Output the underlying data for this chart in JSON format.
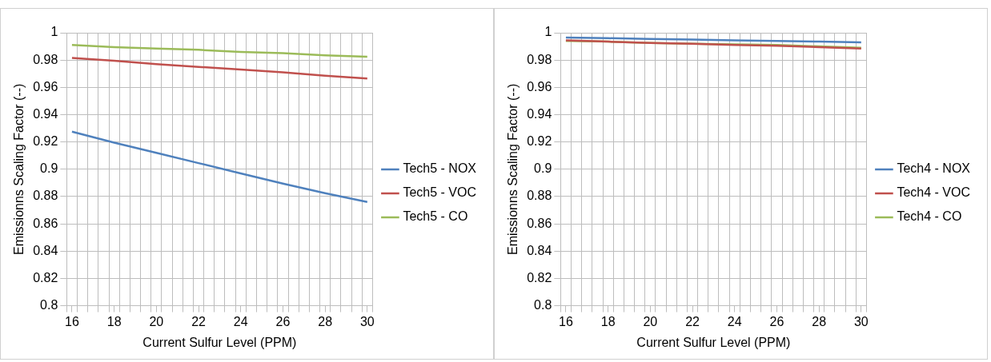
{
  "chart_data": [
    {
      "type": "line",
      "xlabel": "Current Sulfur Level (PPM)",
      "ylabel": "Emissionns Scaling Factor (--)",
      "x": [
        16,
        18,
        20,
        22,
        24,
        26,
        28,
        30
      ],
      "series": [
        {
          "name": "Tech5 - NOX",
          "color": "#4f81bd",
          "values": [
            0.9275,
            0.9195,
            0.912,
            0.9045,
            0.897,
            0.8895,
            0.8825,
            0.876
          ]
        },
        {
          "name": "Tech5 - VOC",
          "color": "#c0504d",
          "values": [
            0.9815,
            0.9795,
            0.977,
            0.975,
            0.973,
            0.971,
            0.9685,
            0.9665
          ]
        },
        {
          "name": "Tech5 - CO",
          "color": "#9bbb59",
          "values": [
            0.991,
            0.9895,
            0.9885,
            0.9875,
            0.986,
            0.985,
            0.9835,
            0.9825
          ]
        }
      ],
      "xlim": [
        15.75,
        30.25
      ],
      "xticks": [
        {
          "value": 15.75,
          "label": null
        },
        16,
        {
          "value": 16.25,
          "label": null
        },
        {
          "value": 16.75,
          "label": null
        },
        {
          "value": 17.25,
          "label": null
        },
        {
          "value": 17.75,
          "label": null
        },
        18,
        {
          "value": 18.25,
          "label": null
        },
        {
          "value": 18.75,
          "label": null
        },
        {
          "value": 19.25,
          "label": null
        },
        {
          "value": 19.75,
          "label": null
        },
        20,
        {
          "value": 20.25,
          "label": null
        },
        {
          "value": 20.75,
          "label": null
        },
        {
          "value": 21.25,
          "label": null
        },
        {
          "value": 21.75,
          "label": null
        },
        22,
        {
          "value": 22.25,
          "label": null
        },
        {
          "value": 22.75,
          "label": null
        },
        {
          "value": 23.25,
          "label": null
        },
        {
          "value": 23.75,
          "label": null
        },
        24,
        {
          "value": 24.25,
          "label": null
        },
        {
          "value": 24.75,
          "label": null
        },
        {
          "value": 25.25,
          "label": null
        },
        {
          "value": 25.75,
          "label": null
        },
        26,
        {
          "value": 26.25,
          "label": null
        },
        {
          "value": 26.75,
          "label": null
        },
        {
          "value": 27.25,
          "label": null
        },
        {
          "value": 27.75,
          "label": null
        },
        28,
        {
          "value": 28.25,
          "label": null
        },
        {
          "value": 28.75,
          "label": null
        },
        {
          "value": 29.25,
          "label": null
        },
        {
          "value": 29.75,
          "label": null
        },
        30,
        {
          "value": 30.25,
          "label": null
        }
      ],
      "ylim": [
        0.8,
        1
      ],
      "yticks": [
        0.8,
        0.82,
        0.84,
        0.86,
        0.88,
        0.9,
        0.92,
        0.94,
        0.96,
        0.98,
        1
      ],
      "grid": true,
      "legend": "right",
      "marker": "none",
      "line_style": "solid"
    },
    {
      "type": "line",
      "xlabel": "Current Sulfur Level (PPM)",
      "ylabel": "Emissionns Scaling Factor (--)",
      "x": [
        16,
        18,
        20,
        22,
        24,
        26,
        28,
        30
      ],
      "series": [
        {
          "name": "Tech4 - NOX",
          "color": "#4f81bd",
          "values": [
            0.9965,
            0.996,
            0.9955,
            0.995,
            0.9945,
            0.994,
            0.9935,
            0.993
          ]
        },
        {
          "name": "Tech4 - VOC",
          "color": "#c0504d",
          "values": [
            0.9945,
            0.9935,
            0.9925,
            0.992,
            0.991,
            0.9905,
            0.9895,
            0.9885
          ]
        },
        {
          "name": "Tech4 - CO",
          "color": "#9bbb59",
          "values": [
            0.994,
            0.9935,
            0.9925,
            0.992,
            0.9915,
            0.991,
            0.99,
            0.989
          ]
        }
      ],
      "xlim": [
        15.75,
        30.25
      ],
      "xticks": [
        {
          "value": 15.75,
          "label": null
        },
        16,
        {
          "value": 16.25,
          "label": null
        },
        {
          "value": 16.75,
          "label": null
        },
        {
          "value": 17.25,
          "label": null
        },
        {
          "value": 17.75,
          "label": null
        },
        18,
        {
          "value": 18.25,
          "label": null
        },
        {
          "value": 18.75,
          "label": null
        },
        {
          "value": 19.25,
          "label": null
        },
        {
          "value": 19.75,
          "label": null
        },
        20,
        {
          "value": 20.25,
          "label": null
        },
        {
          "value": 20.75,
          "label": null
        },
        {
          "value": 21.25,
          "label": null
        },
        {
          "value": 21.75,
          "label": null
        },
        22,
        {
          "value": 22.25,
          "label": null
        },
        {
          "value": 22.75,
          "label": null
        },
        {
          "value": 23.25,
          "label": null
        },
        {
          "value": 23.75,
          "label": null
        },
        24,
        {
          "value": 24.25,
          "label": null
        },
        {
          "value": 24.75,
          "label": null
        },
        {
          "value": 25.25,
          "label": null
        },
        {
          "value": 25.75,
          "label": null
        },
        26,
        {
          "value": 26.25,
          "label": null
        },
        {
          "value": 26.75,
          "label": null
        },
        {
          "value": 27.25,
          "label": null
        },
        {
          "value": 27.75,
          "label": null
        },
        28,
        {
          "value": 28.25,
          "label": null
        },
        {
          "value": 28.75,
          "label": null
        },
        {
          "value": 29.25,
          "label": null
        },
        {
          "value": 29.75,
          "label": null
        },
        30,
        {
          "value": 30.25,
          "label": null
        }
      ],
      "ylim": [
        0.8,
        1
      ],
      "yticks": [
        0.8,
        0.82,
        0.84,
        0.86,
        0.88,
        0.9,
        0.92,
        0.94,
        0.96,
        0.98,
        1
      ],
      "grid": true,
      "legend": "right",
      "marker": "none",
      "line_style": "solid"
    }
  ]
}
